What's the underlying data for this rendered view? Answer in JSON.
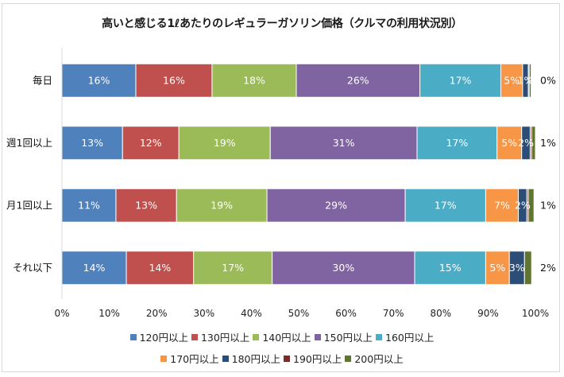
{
  "chart_data": {
    "type": "bar",
    "orientation": "horizontal",
    "stacked": "percent",
    "title": "高いと感じる1ℓあたりのレギュラーガソリン価格（クルマの利用状況別）",
    "xlabel": "",
    "ylabel": "",
    "xlim": [
      0,
      100
    ],
    "x_ticks": [
      "0%",
      "10%",
      "20%",
      "30%",
      "40%",
      "50%",
      "60%",
      "70%",
      "80%",
      "90%",
      "100%"
    ],
    "grid": false,
    "legend_position": "bottom",
    "categories": [
      "毎日",
      "週1回以上",
      "月1回以上",
      "それ以下"
    ],
    "series": [
      {
        "name": "120円以上",
        "color": "#4f81bd",
        "values": [
          15.6,
          12.8,
          11.4,
          13.6
        ],
        "labels": [
          "16%",
          "13%",
          "11%",
          "14%"
        ]
      },
      {
        "name": "130円以上",
        "color": "#c0504d",
        "values": [
          16.1,
          11.9,
          12.8,
          14.2
        ],
        "labels": [
          "16%",
          "12%",
          "13%",
          "14%"
        ]
      },
      {
        "name": "140円以上",
        "color": "#9bbb59",
        "values": [
          17.8,
          19.3,
          19.1,
          16.6
        ],
        "labels": [
          "18%",
          "19%",
          "19%",
          "17%"
        ]
      },
      {
        "name": "150円以上",
        "color": "#8064a2",
        "values": [
          26.1,
          31.0,
          29.2,
          30.1
        ],
        "labels": [
          "26%",
          "31%",
          "29%",
          "30%"
        ]
      },
      {
        "name": "160円以上",
        "color": "#4bacc6",
        "values": [
          17.1,
          16.9,
          17.0,
          15.0
        ],
        "labels": [
          "17%",
          "17%",
          "17%",
          "15%"
        ]
      },
      {
        "name": "170円以上",
        "color": "#f79646",
        "values": [
          4.6,
          5.2,
          6.9,
          5.0
        ],
        "labels": [
          "5%",
          "5%",
          "7%",
          "5%"
        ]
      },
      {
        "name": "180円以上",
        "color": "#2c4d75",
        "values": [
          1.2,
          1.8,
          1.8,
          3.2
        ],
        "labels": [
          "1%",
          "2%",
          "2%",
          "3%"
        ]
      },
      {
        "name": "190円以上",
        "color": "#772c2a",
        "values": [
          0.2,
          0.3,
          0.3,
          0.0
        ],
        "labels": [
          "",
          "",
          "",
          ""
        ]
      },
      {
        "name": "200円以上",
        "color": "#5f7530",
        "values": [
          0.4,
          0.8,
          1.2,
          1.5
        ],
        "labels": [
          "0%",
          "1%",
          "1%",
          "2%"
        ]
      }
    ]
  }
}
